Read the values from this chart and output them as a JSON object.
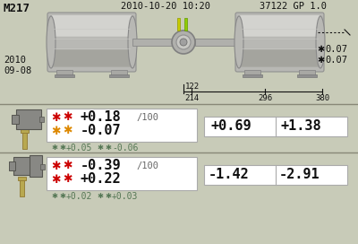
{
  "bg_color": "#c8cbb8",
  "title_left": "M217",
  "title_date": "2010-10-20 10:20",
  "title_right": "37122 GP 1.0",
  "date_sub": "2010\n09-08",
  "dim_122": "122",
  "dim_214": "214",
  "dim_296": "296",
  "dim_380": "380",
  "tol1": "0.07",
  "tol2": "0.07",
  "row1_val1": "+0.18",
  "row1_per100": "/100",
  "row1_val2": "-0.07",
  "row1_small1": "+0.05",
  "row1_small2": "-0.06",
  "row1_right1": "+0.69",
  "row1_right2": "+1.38",
  "row2_val1": "-0.39",
  "row2_per100": "/100",
  "row2_val2": "+0.22",
  "row2_small1": "+0.02",
  "row2_small2": "+0.03",
  "row2_right1": "-1.42",
  "row2_right2": "-2.91",
  "red": "#cc0000",
  "orange": "#dd8800",
  "dark_gray": "#556655",
  "white": "#ffffff",
  "black": "#111111",
  "line_color": "#888877",
  "motor_light": "#d8d8d4",
  "motor_mid": "#b8b8b4",
  "motor_dark": "#989890",
  "foot_color": "#a8a8a4",
  "shaft_color": "#b0b0ac",
  "coupling_color": "#c0c0bc",
  "pin_color": "#b8a850",
  "small_sym_color": "#557755"
}
